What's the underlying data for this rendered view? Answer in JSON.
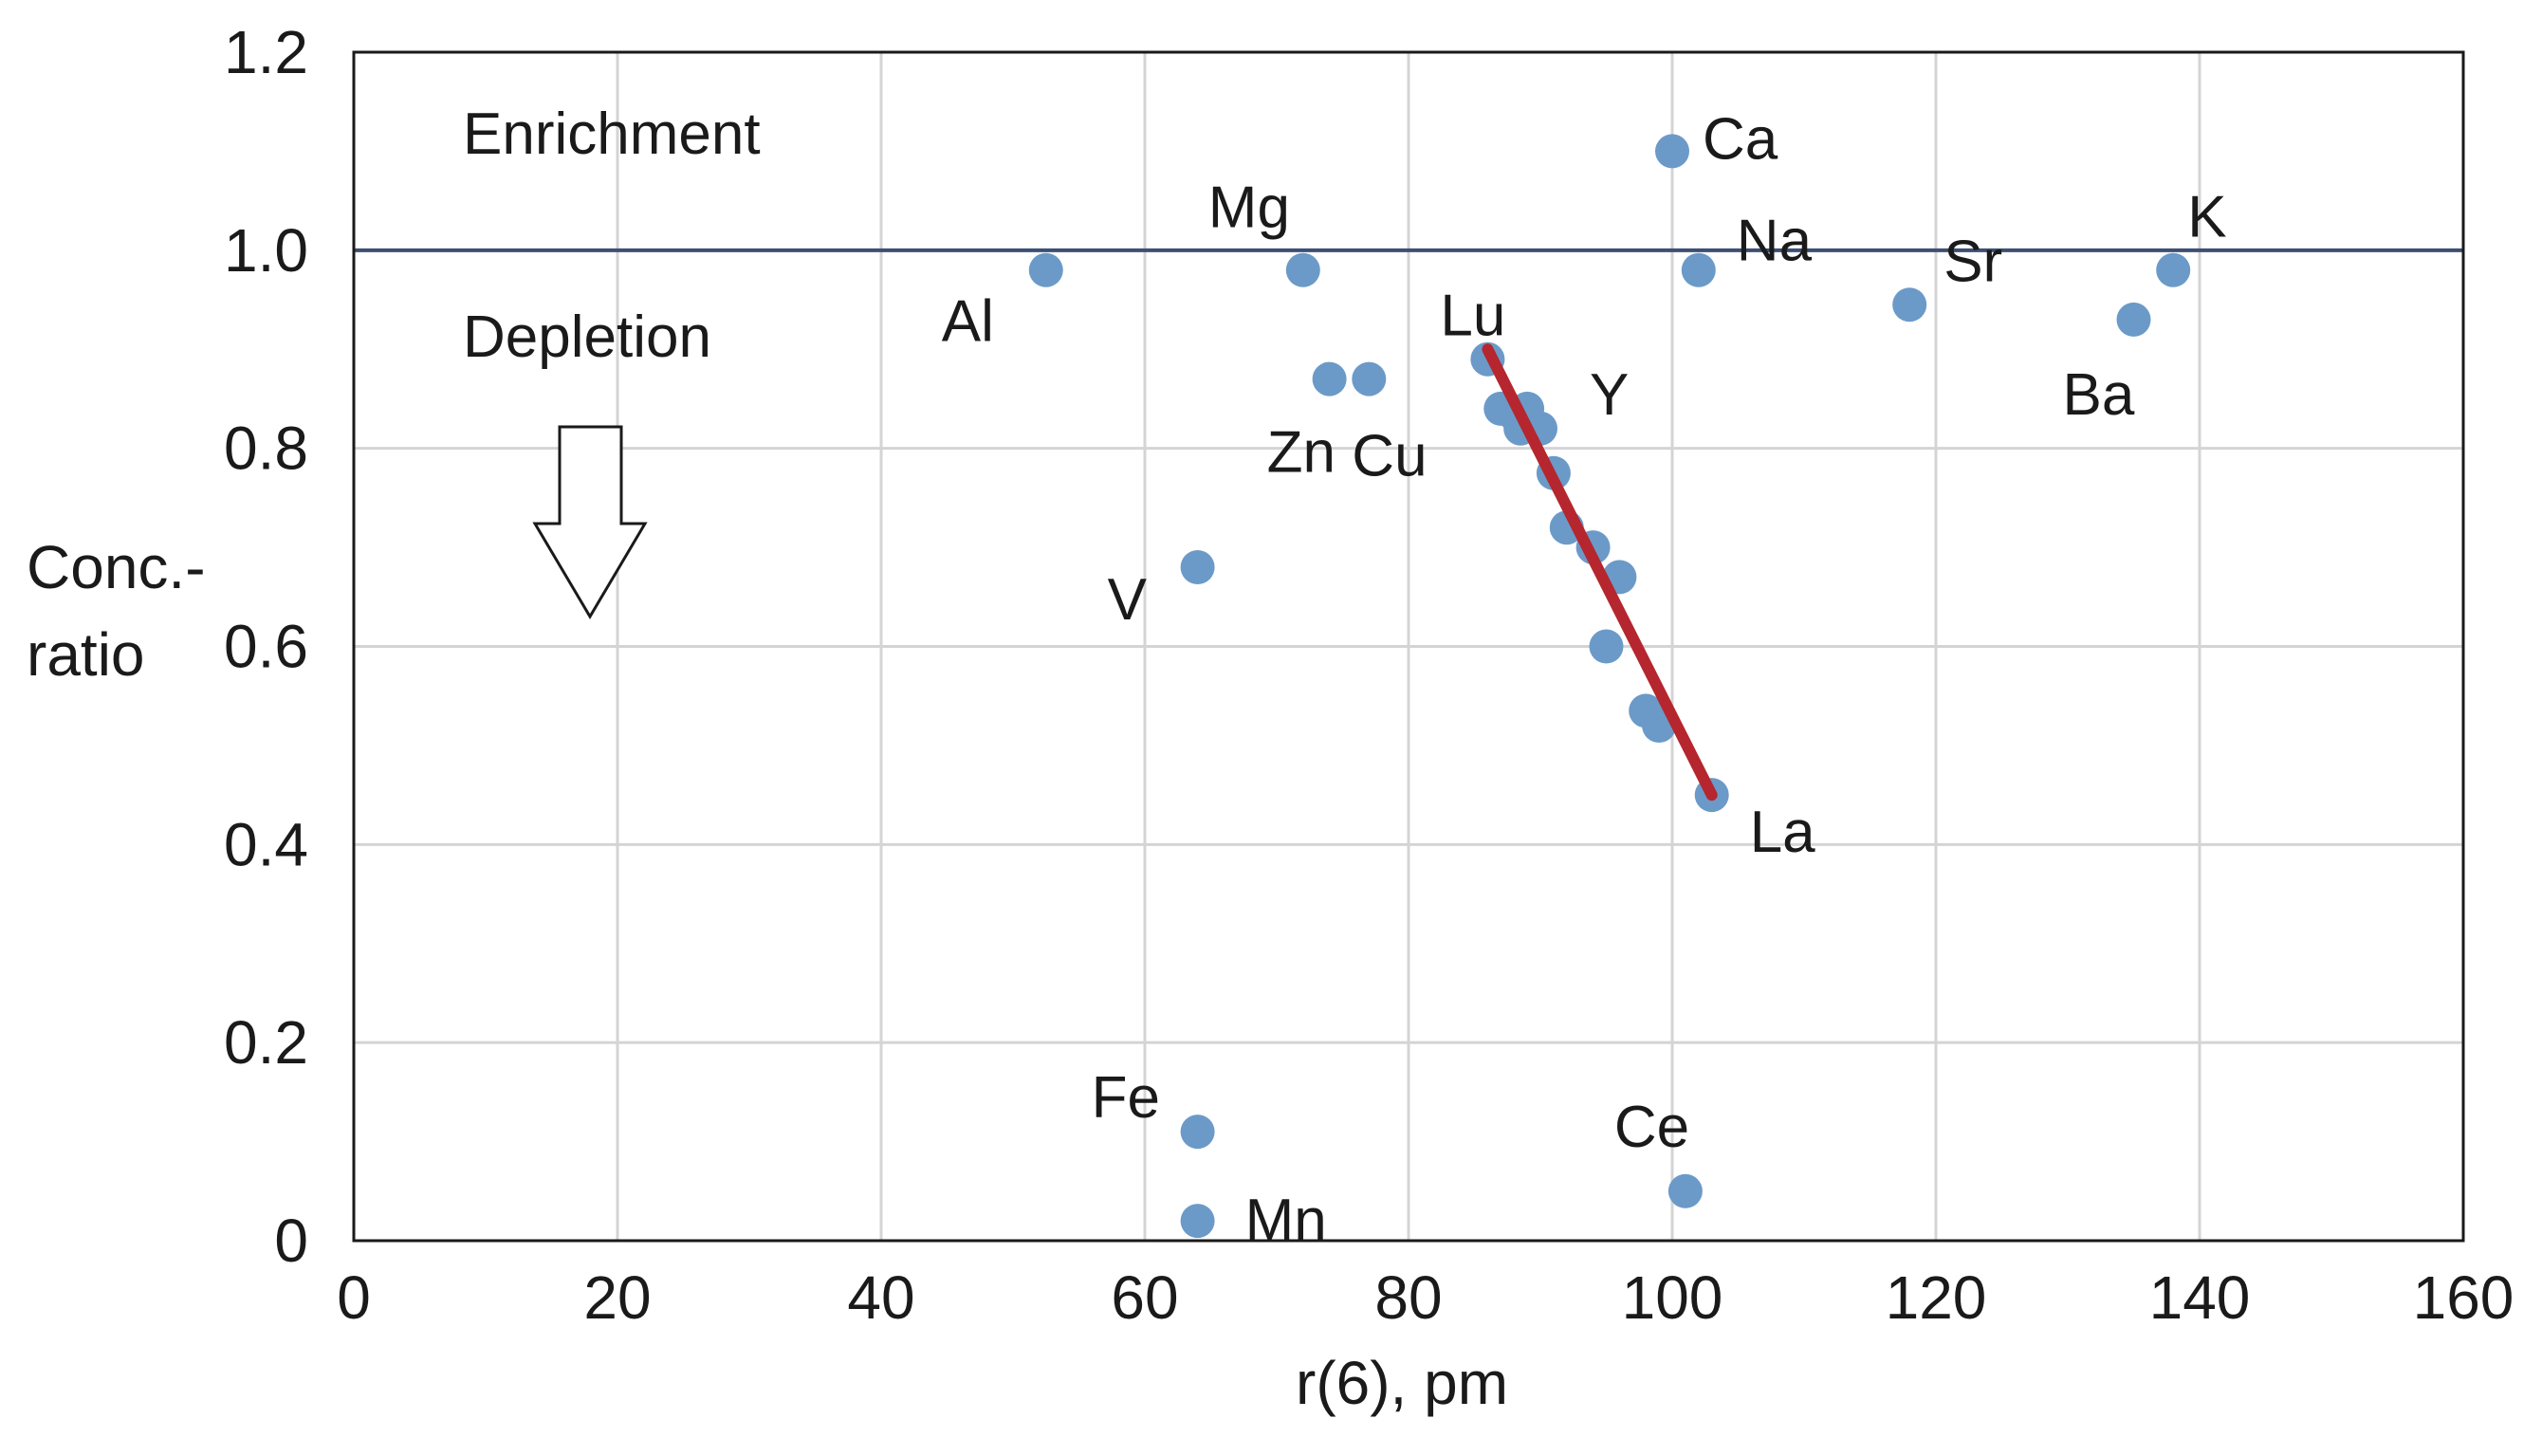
{
  "chart_data": {
    "type": "scatter",
    "title": "",
    "xlabel": "r(6), pm",
    "ylabel_lines": [
      "Conc.-",
      "ratio"
    ],
    "xlim": [
      0,
      160
    ],
    "ylim": [
      0,
      1.2
    ],
    "xticks": [
      0,
      20,
      40,
      60,
      80,
      100,
      120,
      140,
      160
    ],
    "yticks": [
      0,
      0.2,
      0.4,
      0.6,
      0.8,
      1.0,
      1.2
    ],
    "ytick_labels": [
      "0",
      "0.2",
      "0.4",
      "0.6",
      "0.8",
      "1.0",
      "1.2"
    ],
    "grid": true,
    "reference_line": {
      "y": 1.0
    },
    "annotations": {
      "enrichment": "Enrichment",
      "depletion": "Depletion"
    },
    "colors": {
      "points": "#6b9ac8",
      "trend": "#b5262e",
      "reference": "#3d4f73",
      "grid": "#d4d4d4",
      "axis": "#1a1a1a"
    },
    "labeled_points": [
      {
        "label": "Al",
        "x": 52.5,
        "y": 0.98
      },
      {
        "label": "Mg",
        "x": 72,
        "y": 0.98
      },
      {
        "label": "Zn",
        "x": 74,
        "y": 0.87
      },
      {
        "label": "Cu",
        "x": 77,
        "y": 0.87
      },
      {
        "label": "V",
        "x": 64,
        "y": 0.68
      },
      {
        "label": "Fe",
        "x": 64,
        "y": 0.11
      },
      {
        "label": "Mn",
        "x": 64,
        "y": 0.02
      },
      {
        "label": "Ca",
        "x": 100,
        "y": 1.1
      },
      {
        "label": "Na",
        "x": 102,
        "y": 0.98
      },
      {
        "label": "Sr",
        "x": 118,
        "y": 0.945
      },
      {
        "label": "Ba",
        "x": 135,
        "y": 0.93
      },
      {
        "label": "K",
        "x": 138,
        "y": 0.98
      },
      {
        "label": "Ce",
        "x": 101,
        "y": 0.05
      },
      {
        "label": "Lu",
        "x": 86,
        "y": 0.89
      },
      {
        "label": "Y",
        "x": 90,
        "y": 0.82
      },
      {
        "label": "La",
        "x": 103,
        "y": 0.45
      }
    ],
    "lanthanide_points": [
      {
        "x": 87,
        "y": 0.84
      },
      {
        "x": 88,
        "y": 0.835
      },
      {
        "x": 89,
        "y": 0.84
      },
      {
        "x": 88.5,
        "y": 0.82
      },
      {
        "x": 91,
        "y": 0.775
      },
      {
        "x": 92,
        "y": 0.72
      },
      {
        "x": 94,
        "y": 0.7
      },
      {
        "x": 96,
        "y": 0.67
      },
      {
        "x": 95,
        "y": 0.6
      },
      {
        "x": 98,
        "y": 0.535
      },
      {
        "x": 99,
        "y": 0.52
      }
    ],
    "trend_line": {
      "x1": 86,
      "y1": 0.9,
      "x2": 103,
      "y2": 0.45
    }
  }
}
